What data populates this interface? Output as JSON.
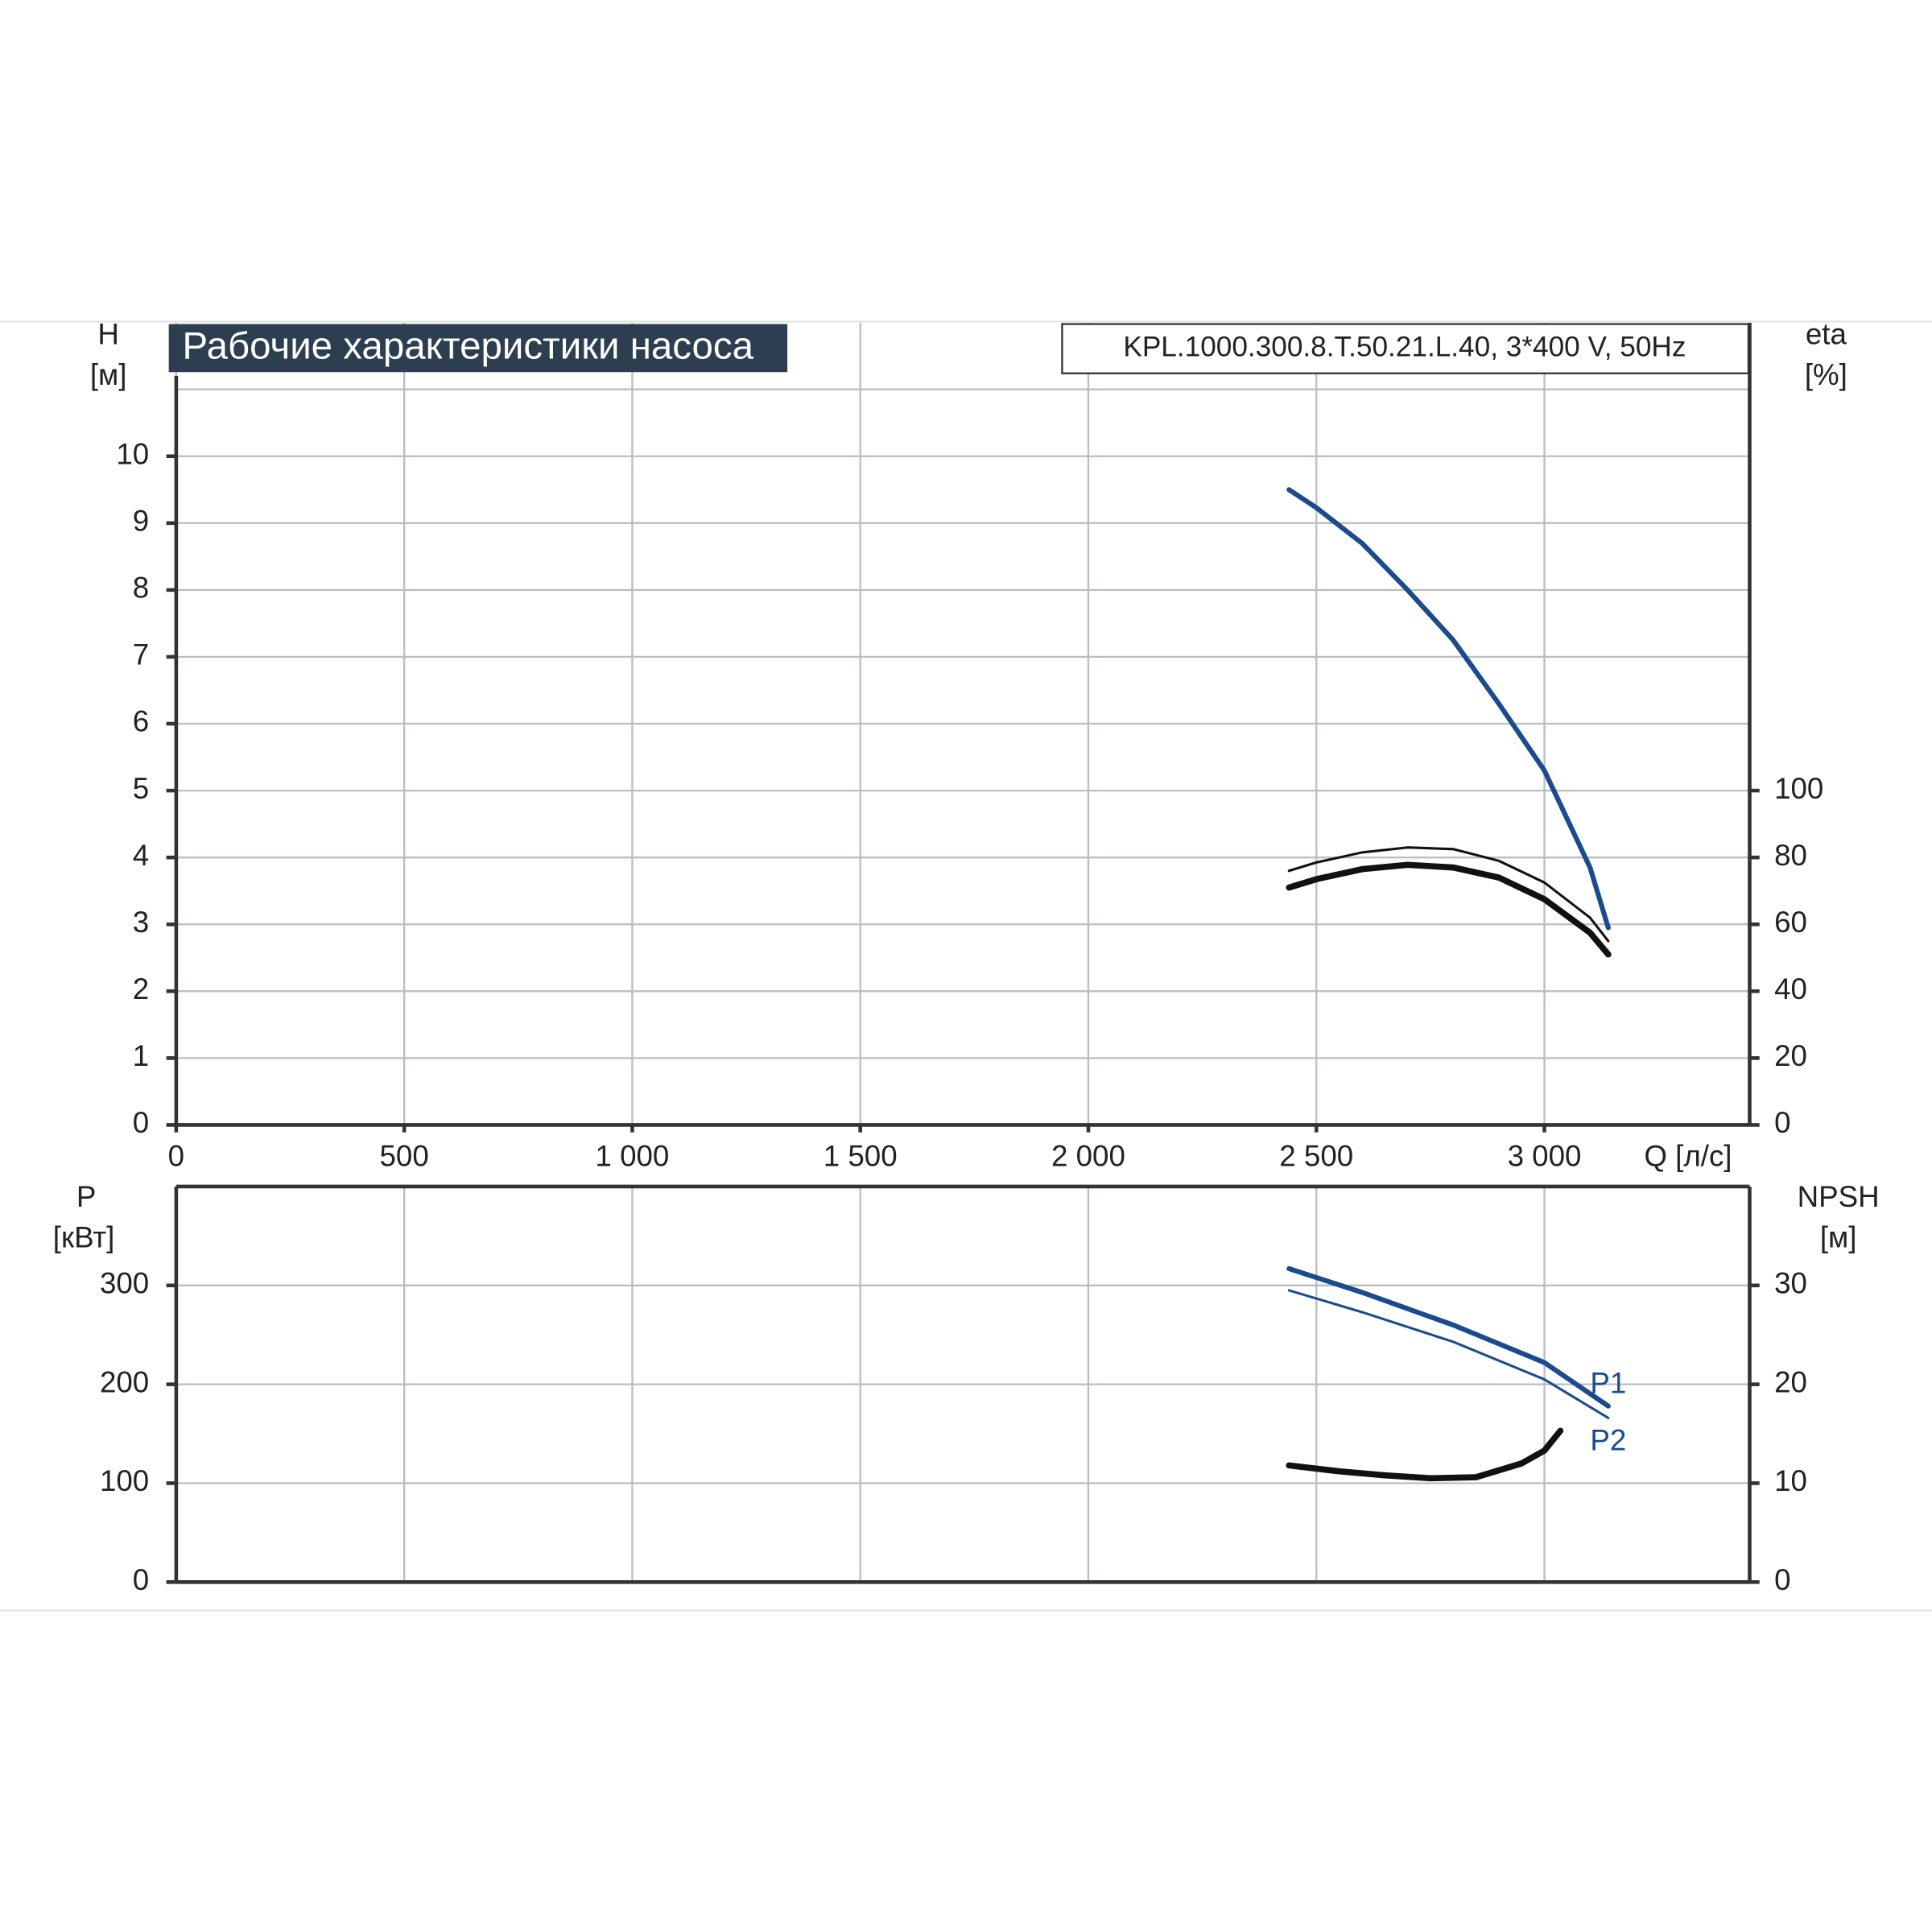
{
  "chart_data": [
    {
      "type": "line",
      "title": "Рабочие характеристики насоса",
      "subtitle": "KPL.1000.300.8.T.50.21.L.40, 3*400 V, 50Hz",
      "xlabel": "Q [л/с]",
      "xlim": [
        0,
        3450
      ],
      "xticks": [
        0,
        500,
        {
          "value": 1000,
          "label": "1 000"
        },
        {
          "value": 1500,
          "label": "1 500"
        },
        {
          "value": 2000,
          "label": "2 000"
        },
        {
          "value": 2500,
          "label": "2 500"
        },
        {
          "value": 3000,
          "label": "3 000"
        }
      ],
      "ylabel": "H",
      "ylabel_unit": "[м]",
      "ylim": [
        0,
        11
      ],
      "yticks": [
        0,
        1,
        2,
        3,
        4,
        5,
        6,
        7,
        8,
        9,
        10
      ],
      "y2label": "eta",
      "y2label_unit": "[%]",
      "y2lim": [
        0,
        220
      ],
      "y2ticks": [
        0,
        20,
        40,
        60,
        80,
        100
      ],
      "grid": true,
      "series": [
        {
          "color": "#1b4b8c",
          "line_width": 4,
          "x": [
            2440,
            2500,
            2600,
            2700,
            2800,
            2900,
            3000,
            3100,
            3140
          ],
          "values": [
            9.5,
            9.23,
            8.7,
            8.0,
            7.25,
            6.3,
            5.3,
            3.85,
            2.95
          ]
        },
        {
          "color": "#111111",
          "line_width": 2,
          "axis": "y2",
          "x": [
            2440,
            2500,
            2600,
            2700,
            2800,
            2900,
            3000,
            3100,
            3140
          ],
          "values": [
            76,
            78.5,
            81.5,
            83,
            82.5,
            79,
            72.5,
            62,
            55
          ]
        },
        {
          "color": "#111111",
          "line_width": 5,
          "axis": "y2",
          "x": [
            2440,
            2500,
            2600,
            2700,
            2800,
            2900,
            3000,
            3100,
            3140
          ],
          "values": [
            71,
            73.5,
            76.5,
            77.8,
            77,
            74,
            67.5,
            57.5,
            51
          ]
        }
      ]
    },
    {
      "type": "line",
      "xlim": [
        0,
        3450
      ],
      "ylabel": "P",
      "ylabel_unit": "[кВт]",
      "ylim": [
        0,
        400
      ],
      "yticks": [
        0,
        100,
        200,
        300
      ],
      "y2label": "NPSH",
      "y2label_unit": "[м]",
      "y2lim": [
        0,
        40
      ],
      "y2ticks": [
        0,
        10,
        20,
        30
      ],
      "grid": true,
      "series": [
        {
          "name": "P1",
          "color": "#1b4b8c",
          "line_width": 4,
          "x": [
            2440,
            2600,
            2800,
            3000,
            3140
          ],
          "values": [
            317,
            293,
            260,
            222,
            178
          ]
        },
        {
          "name": "P2",
          "color": "#1b4b8c",
          "line_width": 2,
          "x": [
            2440,
            2600,
            2800,
            3000,
            3140
          ],
          "values": [
            295,
            273,
            243,
            205,
            166
          ]
        },
        {
          "color": "#111111",
          "line_width": 5,
          "axis": "y2",
          "x": [
            2440,
            2550,
            2650,
            2750,
            2850,
            2950,
            3000,
            3035
          ],
          "values": [
            11.8,
            11.2,
            10.8,
            10.5,
            10.6,
            12.0,
            13.3,
            15.3
          ]
        }
      ]
    }
  ]
}
